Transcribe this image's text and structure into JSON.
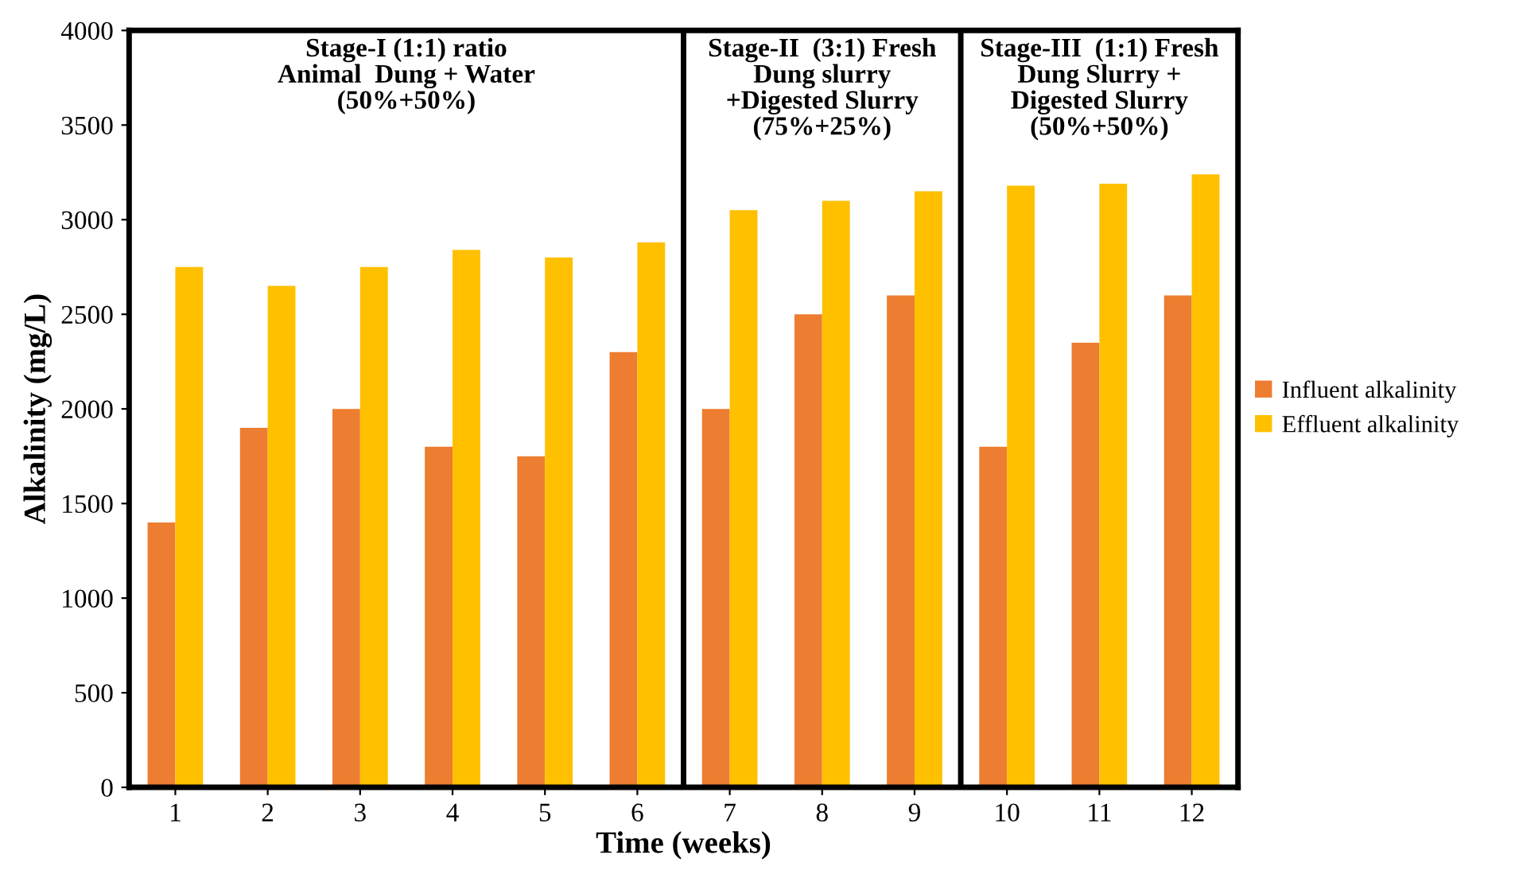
{
  "chart_data": {
    "type": "bar",
    "xlabel": "Time (weeks)",
    "ylabel": "Alkalinity (mg/L)",
    "x": [
      1,
      2,
      3,
      4,
      5,
      6,
      7,
      8,
      9,
      10,
      11,
      12
    ],
    "xlim": [
      0.5,
      12.5
    ],
    "xticks": [
      1,
      2,
      3,
      4,
      5,
      6,
      7,
      8,
      9,
      10,
      11,
      12
    ],
    "ylim": [
      0,
      4000
    ],
    "yticks": [
      0,
      500,
      1000,
      1500,
      2000,
      2500,
      3000,
      3500,
      4000
    ],
    "series": [
      {
        "name": "Influent alkalinity",
        "color": "#ed7d31",
        "values": [
          1400,
          1900,
          2000,
          1800,
          1750,
          2300,
          2000,
          2500,
          2600,
          1800,
          2350,
          2600
        ]
      },
      {
        "name": "Effluent alkalinity",
        "color": "#ffc000",
        "values": [
          2750,
          2650,
          2750,
          2840,
          2800,
          2880,
          3050,
          3100,
          3150,
          3180,
          3190,
          3240
        ]
      }
    ],
    "ref_lines": [
      {
        "axis": "x",
        "value": 6.5,
        "color": "#000000"
      },
      {
        "axis": "x",
        "value": 9.5,
        "color": "#000000"
      }
    ],
    "annotations": [
      "Stage-I (1:1) ratio\nAnimal  Dung + Water\n(50%+50%)",
      "Stage-II  (3:1) Fresh\nDung slurry\n+Digested Slurry\n(75%+25%)",
      "Stage-III  (1:1) Fresh\nDung Slurry +\nDigested Slurry\n(50%+50%)"
    ],
    "legend": "right",
    "grid": false
  }
}
